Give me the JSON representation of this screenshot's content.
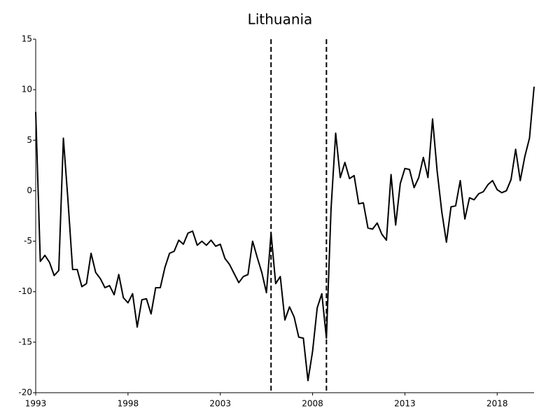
{
  "chart_data": {
    "type": "line",
    "title": "Lithuania",
    "x": [
      1993,
      1993.25,
      1993.5,
      1993.75,
      1994,
      1994.25,
      1994.5,
      1994.75,
      1995,
      1995.25,
      1995.5,
      1995.75,
      1996,
      1996.25,
      1996.5,
      1996.75,
      1997,
      1997.25,
      1997.5,
      1997.75,
      1998,
      1998.25,
      1998.5,
      1998.75,
      1999,
      1999.25,
      1999.5,
      1999.75,
      2000,
      2000.25,
      2000.5,
      2000.75,
      2001,
      2001.25,
      2001.5,
      2001.75,
      2002,
      2002.25,
      2002.5,
      2002.75,
      2003,
      2003.25,
      2003.5,
      2003.75,
      2004,
      2004.25,
      2004.5,
      2004.75,
      2005,
      2005.25,
      2005.5,
      2005.75,
      2006,
      2006.25,
      2006.5,
      2006.75,
      2007,
      2007.25,
      2007.5,
      2007.75,
      2008,
      2008.25,
      2008.5,
      2008.75,
      2009,
      2009.25,
      2009.5,
      2009.75,
      2010,
      2010.25,
      2010.5,
      2010.75,
      2011,
      2011.25,
      2011.5,
      2011.75,
      2012,
      2012.25,
      2012.5,
      2012.75,
      2013,
      2013.25,
      2013.5,
      2013.75,
      2014,
      2014.25,
      2014.5,
      2014.75,
      2015,
      2015.25,
      2015.5,
      2015.75,
      2016,
      2016.25,
      2016.5,
      2016.75,
      2017,
      2017.25,
      2017.5,
      2017.75,
      2018,
      2018.25,
      2018.5,
      2018.75,
      2019,
      2019.25,
      2019.5,
      2019.75,
      2020
    ],
    "values": [
      7.8,
      -7.0,
      -6.4,
      -7.1,
      -8.4,
      -7.9,
      5.2,
      -1.0,
      -7.8,
      -7.8,
      -9.5,
      -9.2,
      -6.2,
      -8.1,
      -8.7,
      -9.6,
      -9.4,
      -10.3,
      -8.3,
      -10.6,
      -11.1,
      -10.2,
      -13.5,
      -10.8,
      -10.7,
      -12.2,
      -9.6,
      -9.6,
      -7.6,
      -6.2,
      -6.0,
      -4.9,
      -5.3,
      -4.2,
      -4.0,
      -5.4,
      -5.0,
      -5.4,
      -4.9,
      -5.5,
      -5.3,
      -6.7,
      -7.3,
      -8.2,
      -9.1,
      -8.5,
      -8.3,
      -5.0,
      -6.6,
      -8.1,
      -10.1,
      -4.2,
      -9.2,
      -8.5,
      -12.8,
      -11.5,
      -12.5,
      -14.5,
      -14.6,
      -18.8,
      -15.9,
      -11.6,
      -10.2,
      -14.6,
      -1.8,
      5.7,
      1.3,
      2.8,
      1.2,
      1.5,
      -1.3,
      -1.2,
      -3.7,
      -3.8,
      -3.2,
      -4.3,
      -4.9,
      1.6,
      -3.4,
      0.7,
      2.2,
      2.1,
      0.3,
      1.3,
      3.3,
      1.3,
      7.1,
      1.9,
      -2.1,
      -5.1,
      -1.6,
      -1.5,
      1.0,
      -2.8,
      -0.7,
      -0.9,
      -0.3,
      -0.1,
      0.6,
      1.0,
      0.1,
      -0.2,
      0.0,
      1.1,
      4.1,
      1.0,
      3.4,
      5.2,
      10.3
    ],
    "color": "#000000",
    "vlines": [
      2005.75,
      2008.75
    ],
    "xlim": [
      1993,
      2020
    ],
    "xticks": [
      1993,
      1998,
      2003,
      2008,
      2013,
      2018
    ],
    "ylim": [
      -20,
      15
    ],
    "yticks": [
      -20,
      -15,
      -10,
      -5,
      0,
      5,
      10,
      15
    ],
    "grid": false
  }
}
